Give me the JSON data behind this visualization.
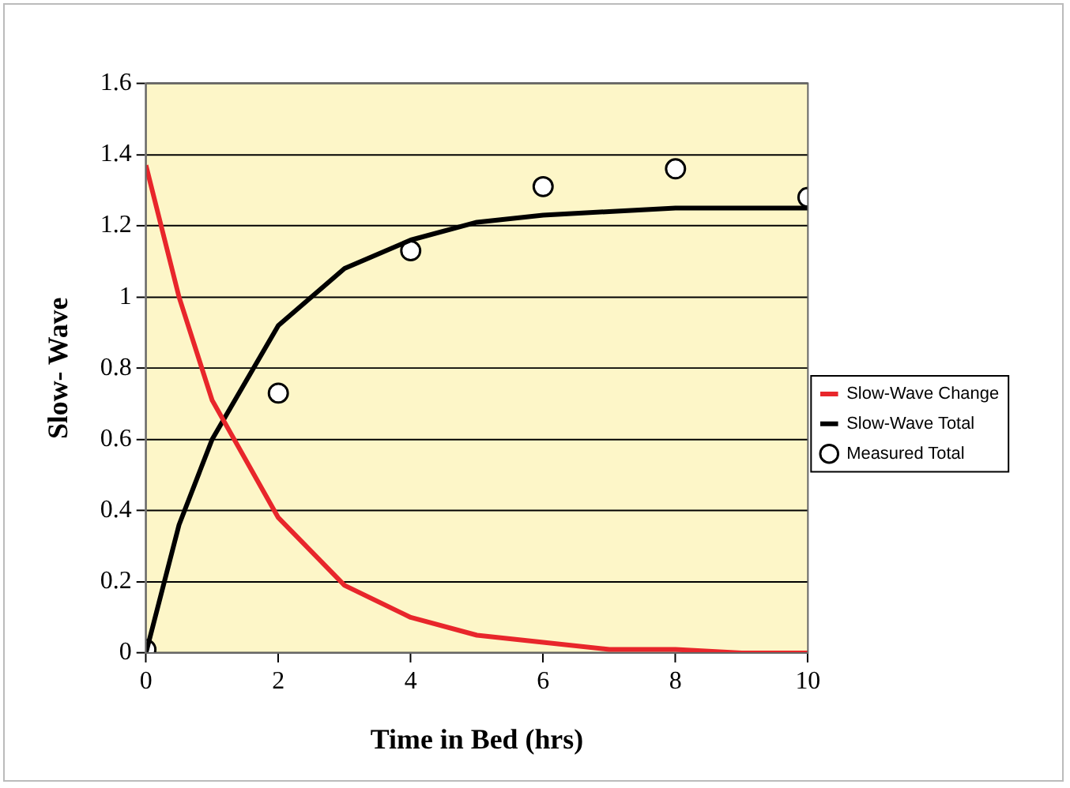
{
  "chart_data": {
    "type": "line",
    "xlabel": "Time in Bed (hrs)",
    "ylabel": "Slow- Wave",
    "xlim": [
      0,
      10
    ],
    "xticks": [
      0,
      2,
      4,
      6,
      8,
      10
    ],
    "ylim": [
      0,
      1.6
    ],
    "yticks": [
      0,
      0.2,
      0.4,
      0.6,
      0.8,
      1,
      1.2,
      1.4,
      1.6
    ],
    "grid": "y",
    "legend": "right",
    "line_style": "solid",
    "series": [
      {
        "name": "Slow-Wave Change",
        "marker": "none",
        "color": "#e8262b",
        "x": [
          0,
          0.5,
          1,
          2,
          3,
          4,
          5,
          6,
          7,
          8,
          9,
          10
        ],
        "values": [
          1.37,
          1.0,
          0.71,
          0.38,
          0.19,
          0.1,
          0.05,
          0.03,
          0.01,
          0.01,
          0,
          0
        ]
      },
      {
        "name": "Slow-Wave Total",
        "marker": "none",
        "color": "#000000",
        "x": [
          0,
          0.5,
          1,
          2,
          3,
          4,
          5,
          6,
          7,
          8,
          9,
          10
        ],
        "values": [
          0,
          0.36,
          0.6,
          0.92,
          1.08,
          1.16,
          1.21,
          1.23,
          1.24,
          1.25,
          1.25,
          1.25
        ]
      },
      {
        "name": "Measured Total",
        "type": "scatter",
        "marker": "circle",
        "color": "#000000",
        "x": [
          0,
          2,
          4,
          6,
          8,
          10
        ],
        "values": [
          0.01,
          0.73,
          1.13,
          1.31,
          1.36,
          1.28
        ]
      }
    ]
  }
}
